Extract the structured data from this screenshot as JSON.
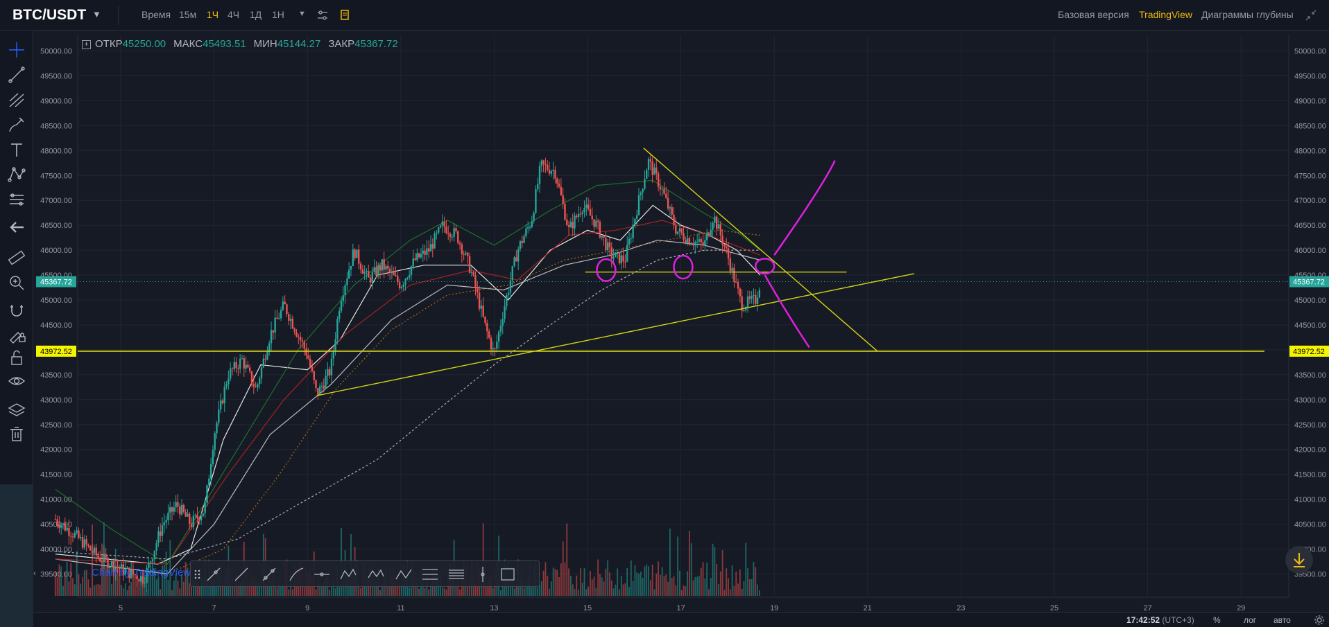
{
  "header": {
    "symbol": "BTC/USDT",
    "timeframes": [
      {
        "label": "Время",
        "active": false
      },
      {
        "label": "15м",
        "active": false
      },
      {
        "label": "1Ч",
        "active": true
      },
      {
        "label": "4Ч",
        "active": false
      },
      {
        "label": "1Д",
        "active": false
      },
      {
        "label": "1Н",
        "active": false
      }
    ],
    "views": [
      {
        "label": "Базовая версия",
        "active": false
      },
      {
        "label": "TradingView",
        "active": true
      },
      {
        "label": "Диаграммы глубины",
        "active": false
      }
    ]
  },
  "ohlc": {
    "open_label": "ОТКР",
    "open": "45250.00",
    "high_label": "МАКС",
    "high": "45493.51",
    "low_label": "МИН",
    "low": "45144.27",
    "close_label": "ЗАКР",
    "close": "45367.72"
  },
  "toolbar": {
    "icons": [
      "crosshair-icon",
      "trend-line-icon",
      "pitchfork-icon",
      "brush-icon",
      "text-icon",
      "pattern-icon",
      "prediction-icon",
      "back-arrow-icon",
      "ruler-icon",
      "zoom-in-icon",
      "magnet-icon",
      "lock-drawing-icon",
      "unlock-icon",
      "eye-icon",
      "layers-icon",
      "trash-icon"
    ]
  },
  "bottom": {
    "time": "17:42:52",
    "timezone": "(UTC+3)",
    "percent": "%",
    "log": "лог",
    "auto": "авто"
  },
  "watermark": "Chart by TradingView",
  "colors": {
    "background": "#161a25",
    "up": "#26a69a",
    "down": "#ef5350",
    "accent": "#f0b90b",
    "trendline": "#d4d414",
    "annotation": "#e020e0"
  },
  "chart_data": {
    "type": "candlestick",
    "title": "",
    "x_ticks": [
      "5",
      "7",
      "9",
      "11",
      "13",
      "15",
      "17",
      "19",
      "21",
      "23",
      "25",
      "27",
      "29"
    ],
    "y_ticks": [
      "50000.00",
      "49500.00",
      "49000.00",
      "48500.00",
      "48000.00",
      "47500.00",
      "47000.00",
      "46500.00",
      "46000.00",
      "45500.00",
      "45000.00",
      "44500.00",
      "44000.00",
      "43500.00",
      "43000.00",
      "42500.00",
      "42000.00",
      "41500.00",
      "41000.00",
      "40500.00",
      "40000.00",
      "39500.00"
    ],
    "ylim": [
      39500,
      50000
    ],
    "xlim": [
      3.5,
      29.4
    ],
    "price_tags": [
      {
        "value": 45367.72,
        "label": "45367.72",
        "color": "#26a69a"
      },
      {
        "value": 43972.52,
        "label": "43972.52",
        "color": "#f5f500"
      }
    ],
    "price_path": [
      [
        3.6,
        40600
      ],
      [
        4.0,
        40300
      ],
      [
        4.5,
        39850
      ],
      [
        5.0,
        39600
      ],
      [
        5.5,
        39400
      ],
      [
        5.9,
        40500
      ],
      [
        6.2,
        40900
      ],
      [
        6.5,
        40500
      ],
      [
        6.8,
        40800
      ],
      [
        7.0,
        42300
      ],
      [
        7.3,
        43500
      ],
      [
        7.6,
        43800
      ],
      [
        7.9,
        43200
      ],
      [
        8.2,
        44300
      ],
      [
        8.5,
        44900
      ],
      [
        8.8,
        44300
      ],
      [
        9.0,
        43900
      ],
      [
        9.2,
        43100
      ],
      [
        9.5,
        43600
      ],
      [
        9.7,
        45000
      ],
      [
        10.0,
        46000
      ],
      [
        10.3,
        45400
      ],
      [
        10.6,
        45700
      ],
      [
        11.0,
        45300
      ],
      [
        11.3,
        45800
      ],
      [
        11.6,
        46000
      ],
      [
        11.9,
        46500
      ],
      [
        12.2,
        46300
      ],
      [
        12.5,
        45600
      ],
      [
        12.8,
        44500
      ],
      [
        13.0,
        43900
      ],
      [
        13.2,
        44800
      ],
      [
        13.5,
        46000
      ],
      [
        13.8,
        46600
      ],
      [
        14.0,
        47700
      ],
      [
        14.3,
        47600
      ],
      [
        14.6,
        46400
      ],
      [
        14.9,
        46900
      ],
      [
        15.2,
        46500
      ],
      [
        15.5,
        45900
      ],
      [
        15.8,
        45800
      ],
      [
        16.0,
        46600
      ],
      [
        16.3,
        47800
      ],
      [
        16.6,
        47200
      ],
      [
        16.9,
        46400
      ],
      [
        17.2,
        46200
      ],
      [
        17.5,
        46100
      ],
      [
        17.7,
        46700
      ],
      [
        18.0,
        45900
      ],
      [
        18.3,
        44900
      ],
      [
        18.6,
        45000
      ],
      [
        18.7,
        45360
      ]
    ],
    "ma_lines": [
      {
        "color": "#ffffff",
        "points": [
          [
            3.6,
            39900
          ],
          [
            5.8,
            39700
          ],
          [
            6.5,
            40000
          ],
          [
            7.2,
            42200
          ],
          [
            8.0,
            43700
          ],
          [
            9.0,
            43600
          ],
          [
            9.7,
            44200
          ],
          [
            10.5,
            45500
          ],
          [
            11.5,
            45700
          ],
          [
            12.5,
            45700
          ],
          [
            13.3,
            45000
          ],
          [
            14.2,
            46000
          ],
          [
            15.0,
            46400
          ],
          [
            15.7,
            46200
          ],
          [
            16.4,
            46900
          ],
          [
            17.0,
            46500
          ],
          [
            17.6,
            46300
          ],
          [
            18.2,
            46000
          ],
          [
            18.7,
            45500
          ]
        ]
      },
      {
        "color": "#cfcfcf",
        "points": [
          [
            3.6,
            39800
          ],
          [
            6.0,
            39500
          ],
          [
            7.0,
            40500
          ],
          [
            8.2,
            42300
          ],
          [
            9.5,
            43300
          ],
          [
            10.8,
            44600
          ],
          [
            12.0,
            45300
          ],
          [
            13.2,
            45200
          ],
          [
            14.5,
            45700
          ],
          [
            15.5,
            45900
          ],
          [
            16.5,
            46200
          ],
          [
            17.5,
            46100
          ],
          [
            18.7,
            45800
          ]
        ]
      },
      {
        "color": "#c0c0c0",
        "points": [
          [
            3.6,
            39950
          ],
          [
            6.0,
            39800
          ],
          [
            7.5,
            40200
          ],
          [
            9.0,
            41000
          ],
          [
            10.5,
            41800
          ],
          [
            11.8,
            42800
          ],
          [
            13.0,
            43700
          ],
          [
            14.2,
            44500
          ],
          [
            15.3,
            45200
          ],
          [
            16.5,
            45800
          ],
          [
            17.5,
            46000
          ],
          [
            18.7,
            46000
          ]
        ],
        "dash": "3,3"
      },
      {
        "color": "#b32424",
        "points": [
          [
            3.6,
            39800
          ],
          [
            6.0,
            39700
          ],
          [
            7.3,
            41500
          ],
          [
            8.5,
            43000
          ],
          [
            9.8,
            44300
          ],
          [
            11.2,
            45300
          ],
          [
            12.5,
            45600
          ],
          [
            13.5,
            45400
          ],
          [
            14.6,
            46300
          ],
          [
            15.6,
            46400
          ],
          [
            16.6,
            46600
          ],
          [
            17.6,
            46300
          ],
          [
            18.7,
            45900
          ]
        ]
      },
      {
        "color": "#1f7a2e",
        "points": [
          [
            3.6,
            41200
          ],
          [
            4.8,
            40400
          ],
          [
            6.0,
            39700
          ],
          [
            7.5,
            42000
          ],
          [
            8.8,
            44000
          ],
          [
            10.0,
            45300
          ],
          [
            11.2,
            46200
          ],
          [
            12.0,
            46600
          ],
          [
            13.0,
            46100
          ],
          [
            14.2,
            46800
          ],
          [
            15.2,
            47300
          ],
          [
            16.4,
            47400
          ],
          [
            17.4,
            46800
          ],
          [
            18.3,
            46300
          ],
          [
            18.7,
            46000
          ]
        ]
      },
      {
        "color": "#c07418",
        "points": [
          [
            6.0,
            39500
          ],
          [
            7.2,
            40000
          ],
          [
            8.4,
            41500
          ],
          [
            9.6,
            43200
          ],
          [
            10.8,
            44400
          ],
          [
            12.0,
            45100
          ],
          [
            13.3,
            45300
          ],
          [
            14.5,
            45800
          ],
          [
            15.6,
            46000
          ],
          [
            16.7,
            46200
          ],
          [
            17.8,
            46400
          ],
          [
            18.7,
            46300
          ]
        ],
        "dash": "2,3"
      }
    ],
    "trendlines": [
      {
        "points": [
          [
            9.2,
            43080
          ],
          [
            22.0,
            45530
          ]
        ]
      },
      {
        "points": [
          [
            16.2,
            48050
          ],
          [
            21.2,
            43980
          ]
        ]
      },
      {
        "points": [
          [
            14.95,
            45560
          ],
          [
            20.55,
            45560
          ]
        ]
      },
      {
        "points": [
          [
            3.0,
            43972.52
          ],
          [
            29.5,
            43972.52
          ]
        ]
      }
    ],
    "annotations": [
      {
        "type": "ellipse",
        "cx": 15.4,
        "cy": 45600,
        "rx": 0.2,
        "ry": 220
      },
      {
        "type": "ellipse",
        "cx": 17.05,
        "cy": 45660,
        "rx": 0.2,
        "ry": 230
      },
      {
        "type": "ellipse",
        "cx": 18.8,
        "cy": 45680,
        "rx": 0.2,
        "ry": 150
      },
      {
        "type": "curve",
        "points": [
          [
            19.0,
            45900
          ],
          [
            19.6,
            46700
          ],
          [
            20.1,
            47400
          ],
          [
            20.3,
            47800
          ]
        ]
      },
      {
        "type": "curve",
        "points": [
          [
            18.8,
            45500
          ],
          [
            19.1,
            45000
          ],
          [
            19.5,
            44400
          ],
          [
            19.75,
            44050
          ]
        ]
      }
    ]
  }
}
